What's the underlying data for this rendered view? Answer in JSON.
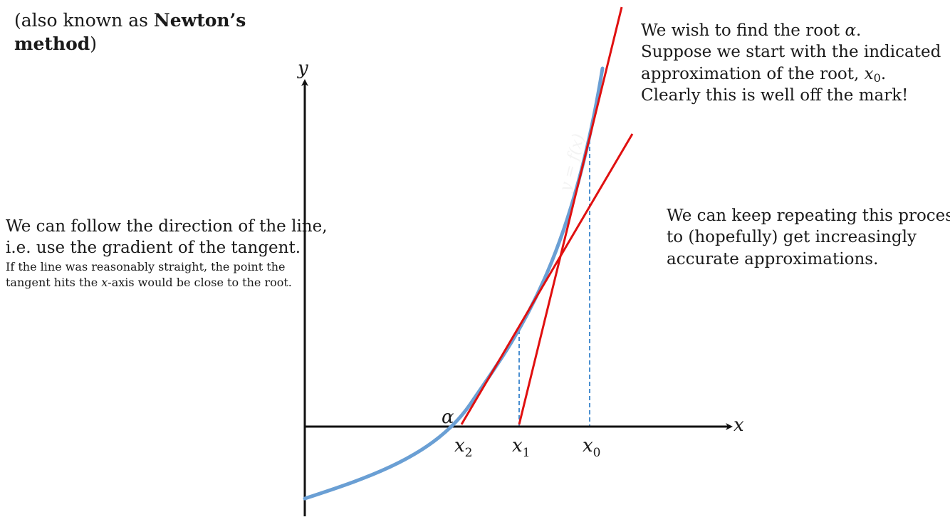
{
  "intro": {
    "prefix": "(also known as ",
    "name_bold": "Newton’s method",
    "name_part1": "Newton’s",
    "name_part2": "method",
    "suffix": ")"
  },
  "left_note": {
    "line1": "We can follow the direction of the line,",
    "line2": "i.e. use the gradient of the tangent.",
    "line3": "If the line was reasonably straight, the point the",
    "line4_prefix": "tangent hits the ",
    "line4_math": "x",
    "line4_suffix": "-axis would be close to the root."
  },
  "right_top_note": {
    "line1_prefix": "We wish to find the root ",
    "line1_math": "α",
    "line1_suffix": ".",
    "line2": "Suppose we start with the indicated",
    "line3_prefix": "approximation of the root, ",
    "line3_math": "x",
    "line3_sub": "0",
    "line3_suffix": ".",
    "line4": "Clearly this is well off the mark!"
  },
  "right_mid_note": {
    "line1": "We can keep repeating this process",
    "line2": "to (hopefully) get increasingly",
    "line3": "accurate approximations."
  },
  "diagram": {
    "y_axis_label": "y",
    "x_axis_label": "x",
    "root_label": "α",
    "curve_label": "y = f(x)",
    "ticks": [
      {
        "base": "x",
        "sub": "2"
      },
      {
        "base": "x",
        "sub": "1"
      },
      {
        "base": "x",
        "sub": "0"
      }
    ],
    "colors": {
      "axis": "#111111",
      "curve": "#6a9fd4",
      "tangent": "#e01010",
      "guide": "#4a8fd0"
    }
  }
}
